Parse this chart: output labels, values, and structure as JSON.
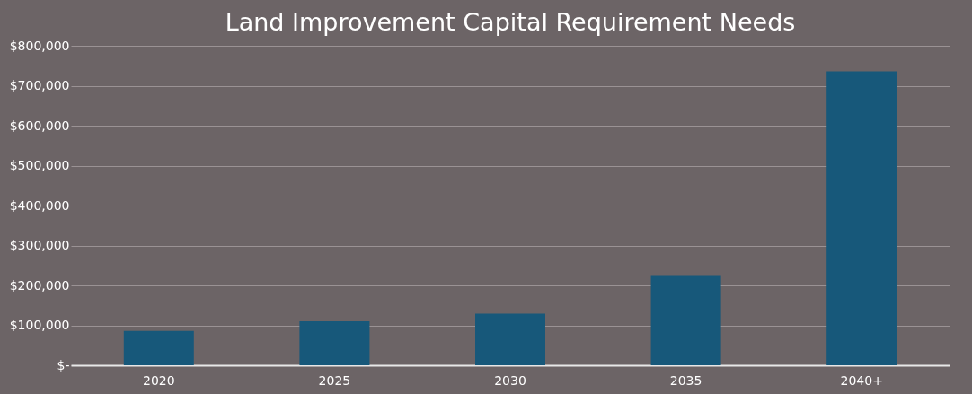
{
  "chart_data": {
    "type": "bar",
    "title": "Land Improvement Capital Requirement Needs",
    "categories": [
      "2020",
      "2025",
      "2030",
      "2035",
      "2040+"
    ],
    "values": [
      86000,
      110000,
      129000,
      226000,
      736000
    ],
    "color": "#17587a",
    "ylim": [
      0,
      800000
    ],
    "yticks": [
      {
        "value": 0,
        "label": "$-"
      },
      {
        "value": 100000,
        "label": "$100,000"
      },
      {
        "value": 200000,
        "label": "$200,000"
      },
      {
        "value": 300000,
        "label": "$300,000"
      },
      {
        "value": 400000,
        "label": "$400,000"
      },
      {
        "value": 500000,
        "label": "$500,000"
      },
      {
        "value": 600000,
        "label": "$600,000"
      },
      {
        "value": 700000,
        "label": "$700,000"
      },
      {
        "value": 800000,
        "label": "$800,000"
      }
    ],
    "grid": "y"
  }
}
